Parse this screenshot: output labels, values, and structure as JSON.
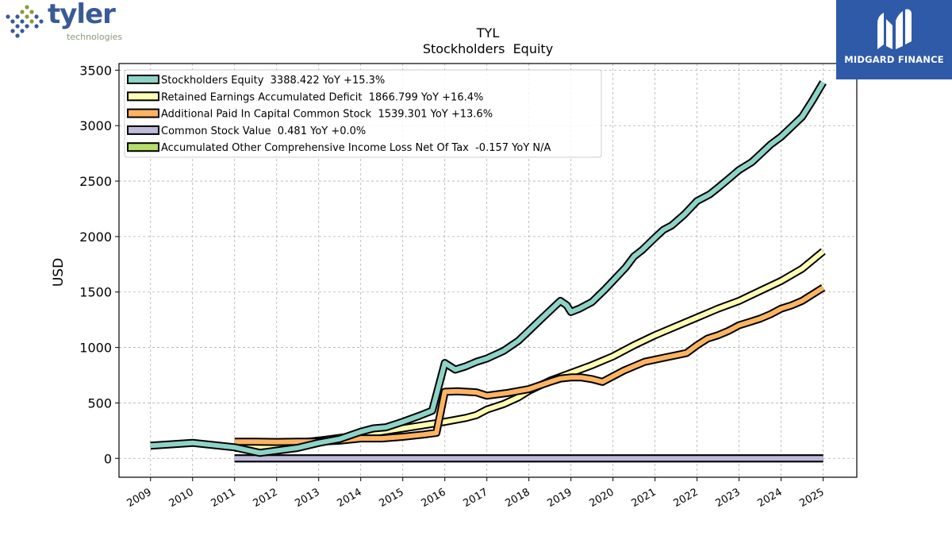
{
  "branding": {
    "left_logo_word": "tyler",
    "left_logo_sub": "technologies",
    "right_logo_text": "MIDGARD FINANCE",
    "colors": {
      "tyler_blue": "#3a5a96",
      "tyler_green": "#8a9a3a",
      "midgard_bg": "#2e5aa8"
    }
  },
  "chart_data": {
    "type": "line",
    "title": "TYL",
    "subtitle": "Stockholders  Equity",
    "ylabel": "USD",
    "xlabel": "",
    "ylim": [
      -170,
      3560
    ],
    "xlim": [
      2008.25,
      2025.8
    ],
    "yticks": [
      0,
      500,
      1000,
      1500,
      2000,
      2500,
      3000,
      3500
    ],
    "xticks": [
      "2009",
      "2010",
      "2011",
      "2012",
      "2013",
      "2014",
      "2015",
      "2016",
      "2017",
      "2018",
      "2019",
      "2020",
      "2021",
      "2022",
      "2023",
      "2024",
      "2025"
    ],
    "grid": true,
    "legend_position": "top-left",
    "series": [
      {
        "name": "Stockholders Equity  3388.422 YoY +15.3%",
        "color": "#8dd3c7",
        "x": [
          2009.0,
          2010.0,
          2011.0,
          2011.6,
          2012.0,
          2012.5,
          2013.0,
          2013.5,
          2014.0,
          2014.3,
          2014.6,
          2015.0,
          2015.4,
          2015.7,
          2016.0,
          2016.25,
          2016.5,
          2016.75,
          2017.0,
          2017.4,
          2017.75,
          2018.0,
          2018.3,
          2018.75,
          2018.9,
          2019.0,
          2019.2,
          2019.5,
          2019.8,
          2020.0,
          2020.3,
          2020.5,
          2020.7,
          2021.0,
          2021.2,
          2021.4,
          2021.7,
          2022.0,
          2022.3,
          2022.5,
          2022.75,
          2023.0,
          2023.3,
          2023.5,
          2023.75,
          2024.0,
          2024.25,
          2024.5,
          2024.75,
          2025.0
        ],
        "y": [
          115,
          140,
          100,
          50,
          70,
          95,
          140,
          175,
          240,
          270,
          280,
          330,
          385,
          430,
          860,
          800,
          830,
          870,
          900,
          970,
          1060,
          1150,
          1260,
          1420,
          1380,
          1320,
          1350,
          1410,
          1520,
          1600,
          1720,
          1820,
          1880,
          1990,
          2060,
          2100,
          2200,
          2320,
          2380,
          2440,
          2520,
          2600,
          2670,
          2740,
          2830,
          2900,
          2990,
          3080,
          3230,
          3390
        ]
      },
      {
        "name": "Retained Earnings Accumulated Deficit  1866.799 YoY +16.4%",
        "color": "#ffffb3",
        "x": [
          2011.0,
          2011.5,
          2012.0,
          2012.5,
          2013.0,
          2013.5,
          2014.0,
          2014.5,
          2015.0,
          2015.5,
          2016.0,
          2016.5,
          2016.75,
          2017.0,
          2017.4,
          2017.75,
          2018.0,
          2018.5,
          2019.0,
          2019.5,
          2020.0,
          2020.5,
          2021.0,
          2021.5,
          2022.0,
          2022.5,
          2023.0,
          2023.5,
          2024.0,
          2024.5,
          2025.0
        ],
        "y": [
          95,
          105,
          120,
          140,
          160,
          185,
          210,
          240,
          270,
          300,
          330,
          365,
          390,
          440,
          490,
          550,
          610,
          700,
          770,
          840,
          920,
          1020,
          1110,
          1190,
          1270,
          1350,
          1420,
          1510,
          1600,
          1710,
          1867
        ]
      },
      {
        "name": "Additional Paid In Capital Common Stock  1539.301 YoY +13.6%",
        "color": "#fdb462",
        "x": [
          2011.0,
          2011.5,
          2012.0,
          2012.5,
          2013.0,
          2013.5,
          2014.0,
          2014.5,
          2015.0,
          2015.5,
          2015.8,
          2016.0,
          2016.3,
          2016.75,
          2017.0,
          2017.5,
          2018.0,
          2018.5,
          2018.75,
          2019.0,
          2019.25,
          2019.5,
          2019.75,
          2020.0,
          2020.25,
          2020.5,
          2020.75,
          2021.0,
          2021.25,
          2021.5,
          2021.75,
          2022.0,
          2022.25,
          2022.5,
          2022.75,
          2023.0,
          2023.25,
          2023.5,
          2023.75,
          2024.0,
          2024.25,
          2024.5,
          2024.75,
          2025.0
        ],
        "y": [
          150,
          150,
          148,
          150,
          150,
          160,
          180,
          180,
          195,
          215,
          230,
          600,
          605,
          595,
          565,
          590,
          625,
          690,
          720,
          730,
          730,
          715,
          690,
          740,
          790,
          830,
          870,
          890,
          910,
          930,
          950,
          1020,
          1080,
          1110,
          1150,
          1200,
          1230,
          1260,
          1300,
          1350,
          1380,
          1420,
          1480,
          1539
        ]
      },
      {
        "name": "Common Stock Value  0.481 YoY +0.0%",
        "color": "#bebada",
        "x": [
          2011.0,
          2025.0
        ],
        "y": [
          0.481,
          0.481
        ]
      },
      {
        "name": "Accumulated Other Comprehensive Income Loss Net Of Tax  -0.157 YoY N/A",
        "color": "#b3de69",
        "x": [
          2011.0,
          2025.0
        ],
        "y": [
          -0.157,
          -0.157
        ]
      }
    ]
  }
}
